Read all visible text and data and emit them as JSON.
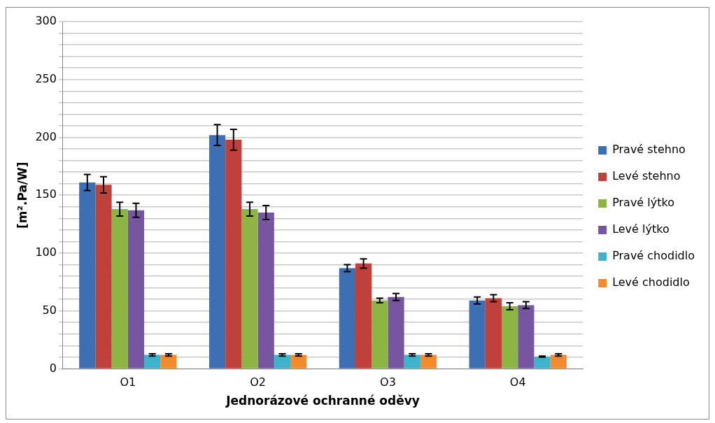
{
  "chart_data": {
    "type": "bar",
    "xlabel": "Jednorázové ochranné oděvy",
    "ylabel": "[m².Pa/W]",
    "categories": [
      "O1",
      "O2",
      "O3",
      "O4"
    ],
    "series": [
      {
        "name": "Pravé stehno",
        "color": "#3c6fb4",
        "values": [
          161,
          202,
          87,
          59
        ],
        "errors": [
          7,
          9,
          3,
          3
        ]
      },
      {
        "name": "Levé stehno",
        "color": "#c0403c",
        "values": [
          159,
          198,
          91,
          61
        ],
        "errors": [
          7,
          9,
          4,
          3
        ]
      },
      {
        "name": "Pravé lýtko",
        "color": "#8cb544",
        "values": [
          138,
          138,
          59,
          54
        ],
        "errors": [
          6,
          6,
          2,
          3
        ]
      },
      {
        "name": "Levé lýtko",
        "color": "#7656a0",
        "values": [
          137,
          135,
          62,
          55
        ],
        "errors": [
          6,
          6,
          3,
          3
        ]
      },
      {
        "name": "Pravé chodidlo",
        "color": "#3fb2cc",
        "values": [
          12,
          12,
          12,
          10.5
        ],
        "errors": [
          1,
          1,
          1,
          0.5
        ]
      },
      {
        "name": "Levé chodidlo",
        "color": "#f38a2c",
        "values": [
          12,
          12,
          12,
          12
        ],
        "errors": [
          1,
          1,
          1,
          1
        ]
      }
    ],
    "ylim": [
      0,
      300
    ],
    "yticks": [
      0,
      {
        "value": 10,
        "label": null
      },
      {
        "value": 20,
        "label": null
      },
      {
        "value": 30,
        "label": null
      },
      {
        "value": 40,
        "label": null
      },
      50,
      {
        "value": 60,
        "label": null
      },
      {
        "value": 70,
        "label": null
      },
      {
        "value": 80,
        "label": null
      },
      {
        "value": 90,
        "label": null
      },
      100,
      {
        "value": 110,
        "label": null
      },
      {
        "value": 120,
        "label": null
      },
      {
        "value": 130,
        "label": null
      },
      {
        "value": 140,
        "label": null
      },
      150,
      {
        "value": 160,
        "label": null
      },
      {
        "value": 170,
        "label": null
      },
      {
        "value": 180,
        "label": null
      },
      {
        "value": 190,
        "label": null
      },
      200,
      {
        "value": 210,
        "label": null
      },
      {
        "value": 220,
        "label": null
      },
      {
        "value": 230,
        "label": null
      },
      {
        "value": 240,
        "label": null
      },
      250,
      {
        "value": 260,
        "label": null
      },
      {
        "value": 270,
        "label": null
      },
      {
        "value": 280,
        "label": null
      },
      {
        "value": 290,
        "label": null
      },
      300
    ],
    "grid": "y",
    "legend": "right"
  }
}
